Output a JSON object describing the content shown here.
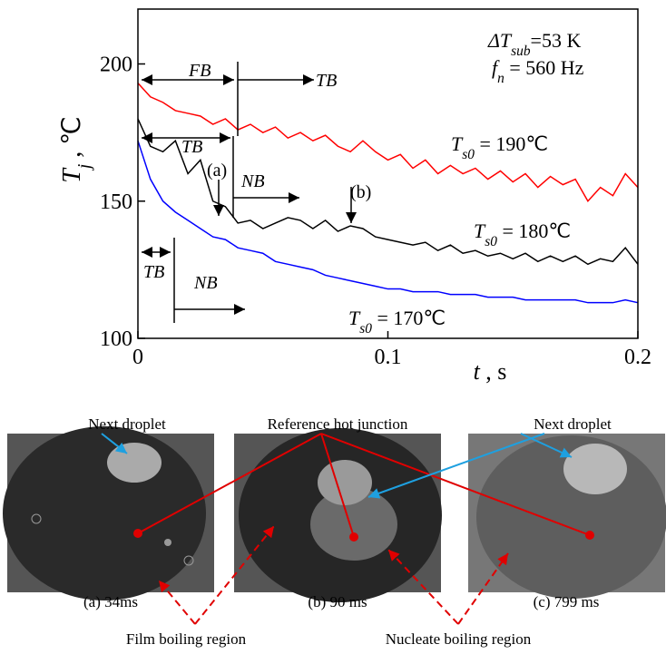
{
  "chart_data": {
    "type": "line",
    "y_label": "Tj , ℃",
    "x_label": "t , s",
    "x": [
      0,
      0.005,
      0.01,
      0.015,
      0.02,
      0.025,
      0.03,
      0.035,
      0.04,
      0.045,
      0.05,
      0.055,
      0.06,
      0.065,
      0.07,
      0.075,
      0.08,
      0.085,
      0.09,
      0.095,
      0.1,
      0.105,
      0.11,
      0.115,
      0.12,
      0.125,
      0.13,
      0.135,
      0.14,
      0.145,
      0.15,
      0.155,
      0.16,
      0.165,
      0.17,
      0.175,
      0.18,
      0.185,
      0.19,
      0.195,
      0.2
    ],
    "series": [
      {
        "name": "Ts0 = 190℃",
        "color": "#ff0000",
        "values": [
          193,
          188,
          186,
          183,
          182,
          181,
          178,
          180,
          176,
          178,
          175,
          177,
          173,
          175,
          172,
          174,
          170,
          168,
          172,
          168,
          165,
          167,
          162,
          165,
          160,
          163,
          160,
          162,
          158,
          161,
          157,
          160,
          155,
          159,
          156,
          158,
          150,
          155,
          152,
          160,
          155
        ]
      },
      {
        "name": "Ts0 = 180℃",
        "color": "#000000",
        "values": [
          180,
          170,
          168,
          172,
          160,
          165,
          150,
          148,
          142,
          143,
          140,
          142,
          144,
          143,
          140,
          143,
          139,
          141,
          140,
          137,
          136,
          135,
          134,
          135,
          132,
          134,
          131,
          132,
          130,
          131,
          129,
          131,
          128,
          130,
          128,
          130,
          127,
          129,
          128,
          133,
          127
        ]
      },
      {
        "name": "Ts0 = 170℃",
        "color": "#0000ff",
        "values": [
          172,
          158,
          150,
          146,
          143,
          140,
          137,
          136,
          133,
          132,
          131,
          128,
          127,
          126,
          125,
          123,
          122,
          121,
          120,
          119,
          118,
          118,
          117,
          117,
          117,
          116,
          116,
          116,
          115,
          115,
          115,
          114,
          114,
          114,
          114,
          114,
          113,
          113,
          113,
          114,
          113
        ]
      }
    ],
    "xlim": [
      0,
      0.2
    ],
    "xticks": [
      0,
      0.1,
      0.2
    ],
    "ylim": [
      100,
      220
    ],
    "yticks": [
      100,
      150,
      200
    ],
    "annotations": {
      "delta_t": "ΔTsub=53 K",
      "freq": "fn = 560 Hz",
      "fb": "FB",
      "tb_top": "TB",
      "tb_mid": "TB",
      "nb_mid": "NB",
      "tb_low": "TB",
      "nb_low": "NB",
      "a": "(a)",
      "b": "(b)"
    }
  },
  "photos": [
    {
      "caption": "(a) 34ms"
    },
    {
      "caption": "(b) 90 ms"
    },
    {
      "caption": "(c) 799 ms"
    }
  ],
  "callouts": {
    "next_droplet_1": "Next droplet",
    "reference": "Reference hot junction",
    "next_droplet_2": "Next droplet",
    "film": "Film boiling region",
    "nucleate": "Nucleate boiling region"
  }
}
